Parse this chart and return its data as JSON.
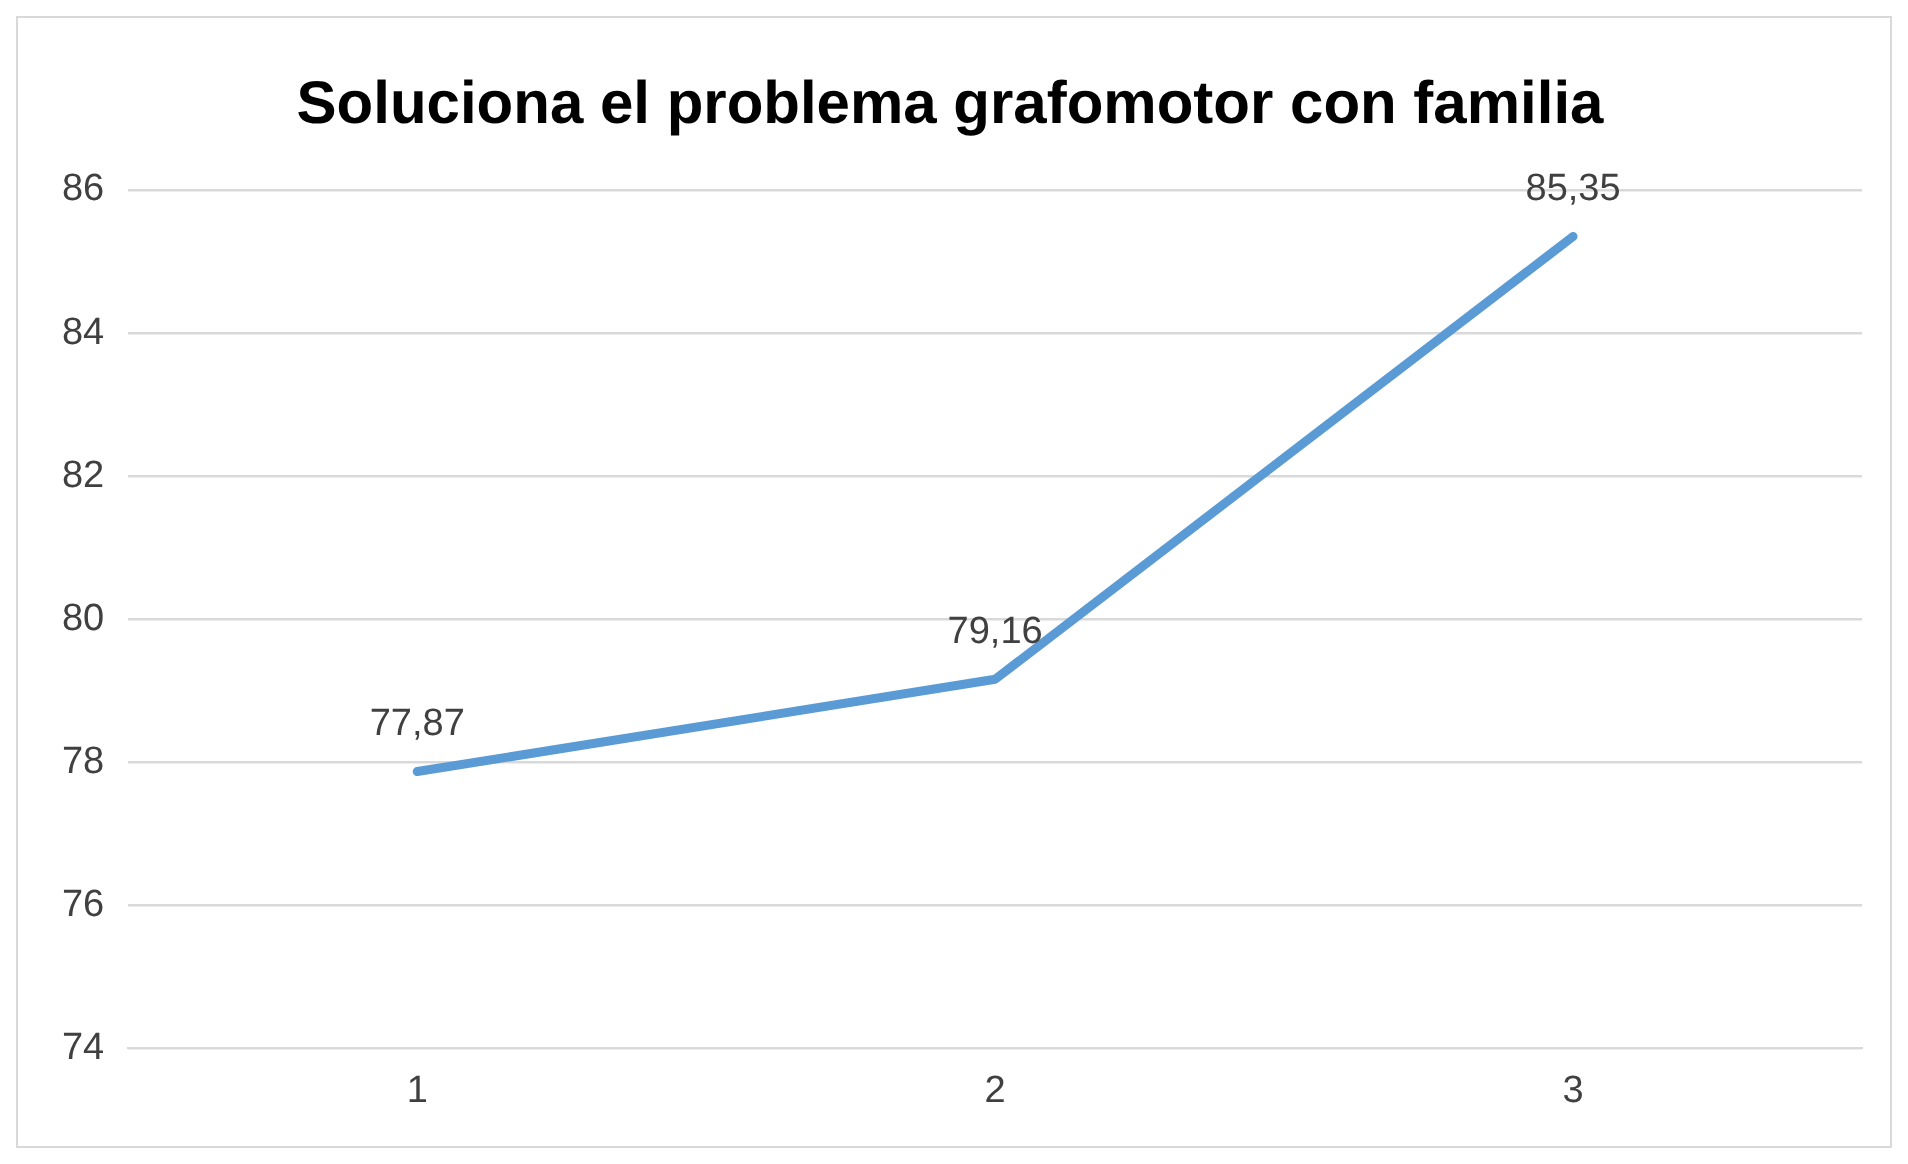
{
  "chart_data": {
    "type": "line",
    "title": "Soluciona el problema grafomotor con familia",
    "categories": [
      "1",
      "2",
      "3"
    ],
    "series": [
      {
        "color": "#5b9bd5",
        "values": [
          77.87,
          79.16,
          85.35
        ],
        "value_labels": [
          "77,87",
          "79,16",
          "85,35"
        ]
      }
    ],
    "ylim": [
      74,
      86
    ],
    "yticks": [
      74,
      76,
      78,
      80,
      82,
      84,
      86
    ],
    "grid": "y",
    "legend": false,
    "marker": "none",
    "line_style": "solid"
  }
}
